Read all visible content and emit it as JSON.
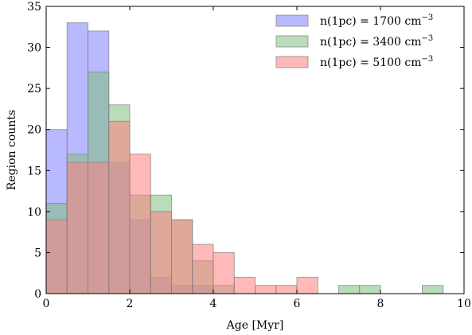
{
  "chart_data": {
    "type": "histogram",
    "xlabel": "Age [Myr]",
    "ylabel": "Region counts",
    "xlim": [
      0,
      10
    ],
    "ylim": [
      0,
      35
    ],
    "xticks": [
      0,
      2,
      4,
      6,
      8,
      10
    ],
    "yticks": [
      0,
      5,
      10,
      15,
      20,
      25,
      30,
      35
    ],
    "legend_position": "top-right",
    "grid": false,
    "bin_edges": [
      0,
      0.5,
      1.0,
      1.5,
      2.0,
      2.5,
      3.0,
      3.5,
      4.0,
      4.5,
      5.0,
      5.5,
      6.0,
      6.5,
      7.0,
      7.5,
      8.0,
      8.5,
      9.0,
      9.5,
      10.0
    ],
    "series": [
      {
        "name": "n(1pc) = 1700 cm",
        "name_sup": "−3",
        "color": "#8080ff",
        "values": [
          20,
          33,
          32,
          16,
          9,
          2,
          1,
          1,
          0,
          0,
          0,
          0,
          0,
          0,
          0,
          0,
          0,
          0,
          0,
          0
        ]
      },
      {
        "name": "n(1pc) = 3400 cm",
        "name_sup": "−3",
        "color": "#80c080",
        "values": [
          11,
          17,
          27,
          23,
          12,
          12,
          9,
          4,
          1,
          0,
          0,
          0,
          0,
          0,
          1,
          1,
          0,
          0,
          1,
          0
        ]
      },
      {
        "name": "n(1pc) = 5100 cm",
        "name_sup": "−3",
        "color": "#ff8080",
        "values": [
          9,
          16,
          16,
          21,
          17,
          10,
          9,
          6,
          5,
          2,
          1,
          1,
          2,
          0,
          0,
          0,
          0,
          0,
          0,
          0
        ]
      }
    ]
  }
}
